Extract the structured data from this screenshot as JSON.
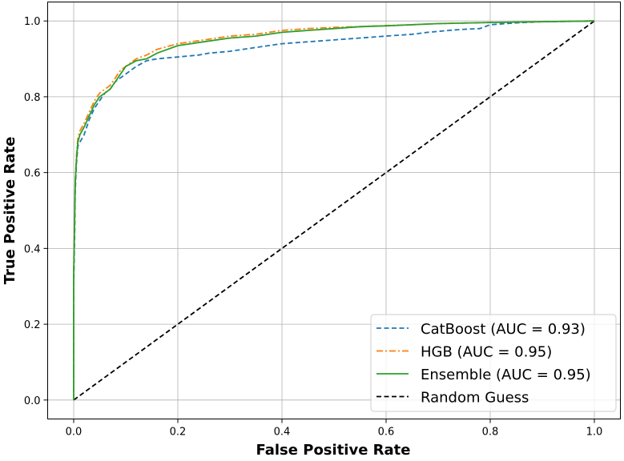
{
  "chart_data": {
    "type": "line",
    "title": "",
    "xlabel": "False Positive Rate",
    "ylabel": "True Positive Rate",
    "xlim": [
      -0.05,
      1.05
    ],
    "ylim": [
      -0.05,
      1.05
    ],
    "xticks": [
      0.0,
      0.2,
      0.4,
      0.6,
      0.8,
      1.0
    ],
    "yticks": [
      0.0,
      0.2,
      0.4,
      0.6,
      0.8,
      1.0
    ],
    "xtick_labels": [
      "0.0",
      "0.2",
      "0.4",
      "0.6",
      "0.8",
      "1.0"
    ],
    "ytick_labels": [
      "0.0",
      "0.2",
      "0.4",
      "0.6",
      "0.8",
      "1.0"
    ],
    "grid": true,
    "legend_position": "lower-right",
    "series": [
      {
        "name": "CatBoost (AUC = 0.93)",
        "color": "#1f77b4",
        "style": "dashed",
        "x": [
          0.0,
          0.0,
          0.002,
          0.003,
          0.005,
          0.008,
          0.012,
          0.02,
          0.03,
          0.04,
          0.05,
          0.06,
          0.07,
          0.08,
          0.09,
          0.1,
          0.12,
          0.14,
          0.16,
          0.2,
          0.24,
          0.26,
          0.3,
          0.35,
          0.4,
          0.45,
          0.5,
          0.55,
          0.6,
          0.65,
          0.68,
          0.72,
          0.75,
          0.78,
          0.8,
          0.85,
          0.9,
          0.95,
          1.0
        ],
        "y": [
          0.0,
          0.3,
          0.45,
          0.55,
          0.62,
          0.67,
          0.68,
          0.7,
          0.74,
          0.77,
          0.79,
          0.81,
          0.82,
          0.84,
          0.85,
          0.86,
          0.88,
          0.895,
          0.9,
          0.905,
          0.91,
          0.915,
          0.92,
          0.93,
          0.94,
          0.945,
          0.95,
          0.955,
          0.96,
          0.965,
          0.97,
          0.975,
          0.978,
          0.98,
          0.99,
          0.995,
          0.998,
          0.999,
          1.0
        ]
      },
      {
        "name": "HGB (AUC = 0.95)",
        "color": "#ff7f0e",
        "style": "dashdot",
        "x": [
          0.0,
          0.0,
          0.002,
          0.003,
          0.005,
          0.008,
          0.012,
          0.02,
          0.03,
          0.04,
          0.05,
          0.06,
          0.07,
          0.08,
          0.09,
          0.1,
          0.12,
          0.14,
          0.16,
          0.2,
          0.25,
          0.3,
          0.35,
          0.4,
          0.45,
          0.5,
          0.55,
          0.6,
          0.65,
          0.7,
          0.8,
          0.9,
          1.0
        ],
        "y": [
          0.0,
          0.35,
          0.5,
          0.58,
          0.64,
          0.69,
          0.71,
          0.73,
          0.76,
          0.79,
          0.81,
          0.82,
          0.83,
          0.85,
          0.87,
          0.88,
          0.9,
          0.91,
          0.925,
          0.94,
          0.95,
          0.96,
          0.965,
          0.975,
          0.98,
          0.983,
          0.985,
          0.988,
          0.99,
          0.993,
          0.996,
          0.998,
          1.0
        ]
      },
      {
        "name": "Ensemble (AUC = 0.95)",
        "color": "#2ca02c",
        "style": "solid",
        "x": [
          0.0,
          0.0,
          0.002,
          0.003,
          0.005,
          0.008,
          0.012,
          0.02,
          0.03,
          0.04,
          0.05,
          0.06,
          0.07,
          0.08,
          0.09,
          0.1,
          0.12,
          0.14,
          0.16,
          0.2,
          0.25,
          0.3,
          0.35,
          0.4,
          0.45,
          0.5,
          0.55,
          0.6,
          0.65,
          0.7,
          0.8,
          0.9,
          1.0
        ],
        "y": [
          0.0,
          0.33,
          0.49,
          0.57,
          0.63,
          0.68,
          0.7,
          0.72,
          0.75,
          0.78,
          0.8,
          0.81,
          0.82,
          0.84,
          0.86,
          0.88,
          0.895,
          0.9,
          0.915,
          0.935,
          0.945,
          0.955,
          0.96,
          0.97,
          0.975,
          0.98,
          0.985,
          0.987,
          0.99,
          0.993,
          0.996,
          0.998,
          1.0
        ]
      },
      {
        "name": "Random Guess",
        "color": "#000000",
        "style": "dashed",
        "x": [
          0.0,
          1.0
        ],
        "y": [
          0.0,
          1.0
        ]
      }
    ]
  }
}
